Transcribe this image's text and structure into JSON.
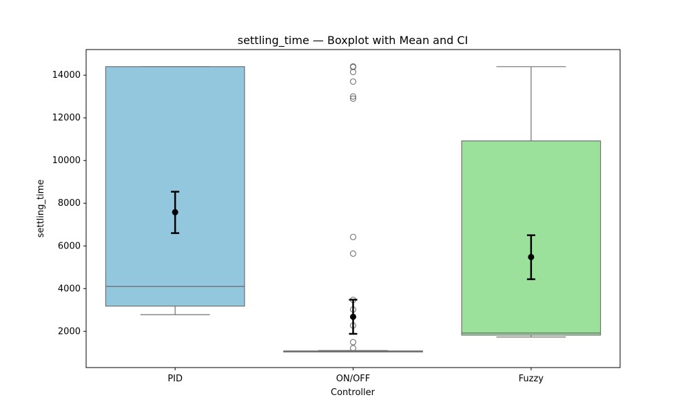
{
  "chart_data": {
    "type": "boxplot",
    "title": "settling_time — Boxplot with Mean and CI",
    "xlabel": "Controller",
    "ylabel": "settling_time",
    "ylim": [
      300,
      15200
    ],
    "yticks": [
      2000,
      4000,
      6000,
      8000,
      10000,
      12000,
      14000
    ],
    "categories": [
      "PID",
      "ON/OFF",
      "Fuzzy"
    ],
    "grid": false,
    "boxes": [
      {
        "category": "PID",
        "color": "#92c7dd",
        "whisker_low": 2780,
        "q1": 3180,
        "median": 4100,
        "q3": 14400,
        "whisker_high": 14400,
        "outliers": [],
        "mean": 7580,
        "ci_low": 6600,
        "ci_high": 8540
      },
      {
        "category": "ON/OFF",
        "color": "#a9c6d8",
        "whisker_low": 1040,
        "q1": 1050,
        "median": 1060,
        "q3": 1080,
        "whisker_high": 1100,
        "outliers": [
          1210,
          1490,
          2270,
          3020,
          3470,
          5640,
          6420,
          12900,
          13000,
          13700,
          14150,
          14380,
          14400,
          14410
        ],
        "mean": 2680,
        "ci_low": 1880,
        "ci_high": 3480
      },
      {
        "category": "Fuzzy",
        "color": "#9be09b",
        "whisker_low": 1730,
        "q1": 1820,
        "median": 1920,
        "q3": 10920,
        "whisker_high": 14400,
        "outliers": [],
        "mean": 5480,
        "ci_low": 4440,
        "ci_high": 6500
      }
    ]
  },
  "colors": {
    "box_edge": "#6f6f6f",
    "mean_marker": "#000000",
    "axes": "#000000"
  }
}
